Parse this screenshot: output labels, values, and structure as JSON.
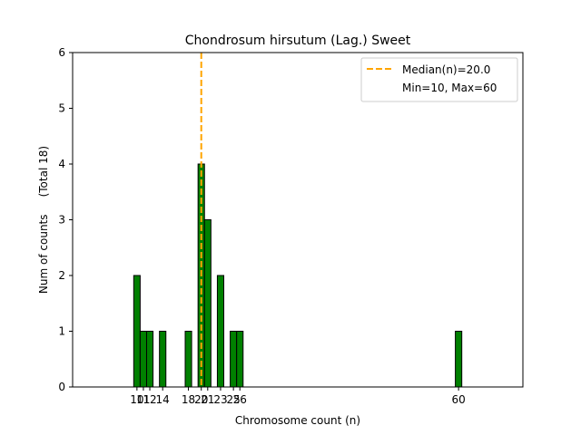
{
  "chart_data": {
    "type": "bar",
    "title": "Chondrosum hirsutum (Lag.) Sweet",
    "xlabel": "Chromosome count (n)",
    "ylabel": "Num of counts     (Total 18)",
    "xlim": [
      0,
      70
    ],
    "ylim": [
      0,
      6
    ],
    "yticks": [
      0,
      1,
      2,
      3,
      4,
      5,
      6
    ],
    "xticks": [
      10,
      11,
      12,
      14,
      18,
      20,
      21,
      23,
      25,
      26,
      60
    ],
    "bar_width": 1,
    "bars": [
      {
        "x": 10,
        "value": 2
      },
      {
        "x": 11,
        "value": 1
      },
      {
        "x": 12,
        "value": 1
      },
      {
        "x": 14,
        "value": 1
      },
      {
        "x": 18,
        "value": 1
      },
      {
        "x": 20,
        "value": 4
      },
      {
        "x": 21,
        "value": 3
      },
      {
        "x": 23,
        "value": 2
      },
      {
        "x": 25,
        "value": 1
      },
      {
        "x": 26,
        "value": 1
      },
      {
        "x": 60,
        "value": 1
      }
    ],
    "median_line": {
      "x": 20.0,
      "label": "Median(n)=20.0"
    },
    "legend": {
      "placement": "top-right",
      "entries": [
        "Median(n)=20.0",
        "Min=10, Max=60"
      ]
    },
    "colors": {
      "bar": "#008000",
      "bar_edge": "#000000",
      "median": "#FFA500"
    }
  }
}
